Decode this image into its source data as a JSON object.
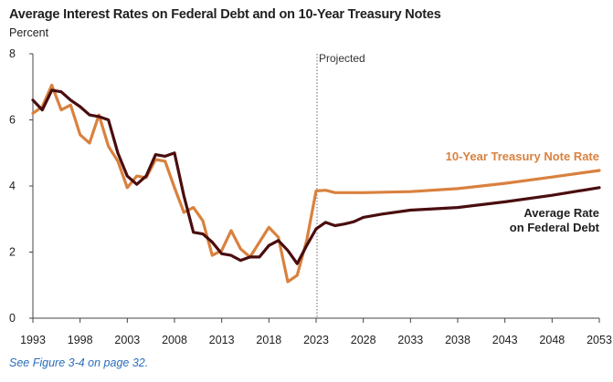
{
  "title": "Average Interest Rates on Federal Debt and on 10-Year Treasury Notes",
  "unit_label": "Percent",
  "footnote": "See Figure 3-4 on page 32.",
  "projected_label": "Projected",
  "colors": {
    "treasury": "#d9813f",
    "federal": "#4a0d0f",
    "axis": "#444444",
    "divider": "#666666"
  },
  "chart_data": {
    "type": "line",
    "xlim": [
      1993,
      2053
    ],
    "ylim": [
      0,
      8
    ],
    "x_ticks": [
      "1993",
      "1998",
      "2003",
      "2008",
      "2013",
      "2018",
      "2023",
      "2028",
      "2033",
      "2038",
      "2043",
      "2048",
      "2053"
    ],
    "y_ticks": [
      "0",
      "2",
      "4",
      "6",
      "8"
    ],
    "projection_start": 2023,
    "grid": false,
    "series": [
      {
        "name": "10-Year Treasury Note Rate",
        "key": "treasury",
        "x": [
          1993,
          1994,
          1995,
          1996,
          1997,
          1998,
          1999,
          2000,
          2001,
          2002,
          2003,
          2004,
          2005,
          2006,
          2007,
          2008,
          2009,
          2010,
          2011,
          2012,
          2013,
          2014,
          2015,
          2016,
          2017,
          2018,
          2019,
          2020,
          2021,
          2022,
          2023,
          2024,
          2025,
          2026,
          2028,
          2033,
          2038,
          2043,
          2048,
          2053
        ],
        "y": [
          6.2,
          6.4,
          7.05,
          6.3,
          6.45,
          5.55,
          5.3,
          6.15,
          5.2,
          4.75,
          3.95,
          4.3,
          4.25,
          4.8,
          4.75,
          3.95,
          3.2,
          3.35,
          2.95,
          1.9,
          2.05,
          2.65,
          2.1,
          1.85,
          2.3,
          2.75,
          2.45,
          1.1,
          1.3,
          2.35,
          3.85,
          3.87,
          3.8,
          3.8,
          3.8,
          3.83,
          3.92,
          4.08,
          4.27,
          4.47
        ]
      },
      {
        "name": "Average Rate on Federal Debt",
        "key": "federal",
        "x": [
          1993,
          1994,
          1995,
          1996,
          1997,
          1998,
          1999,
          2000,
          2001,
          2002,
          2003,
          2004,
          2005,
          2006,
          2007,
          2008,
          2009,
          2010,
          2011,
          2012,
          2013,
          2014,
          2015,
          2016,
          2017,
          2018,
          2019,
          2020,
          2021,
          2022,
          2023,
          2024,
          2025,
          2026,
          2027,
          2028,
          2030,
          2033,
          2038,
          2043,
          2048,
          2053
        ],
        "y": [
          6.6,
          6.3,
          6.9,
          6.85,
          6.6,
          6.4,
          6.15,
          6.1,
          6.0,
          5.0,
          4.3,
          4.05,
          4.3,
          4.95,
          4.9,
          5.0,
          3.7,
          2.6,
          2.55,
          2.3,
          1.95,
          1.9,
          1.75,
          1.85,
          1.85,
          2.2,
          2.35,
          2.05,
          1.65,
          2.2,
          2.7,
          2.9,
          2.8,
          2.85,
          2.92,
          3.05,
          3.15,
          3.27,
          3.35,
          3.52,
          3.72,
          3.95
        ]
      }
    ]
  }
}
